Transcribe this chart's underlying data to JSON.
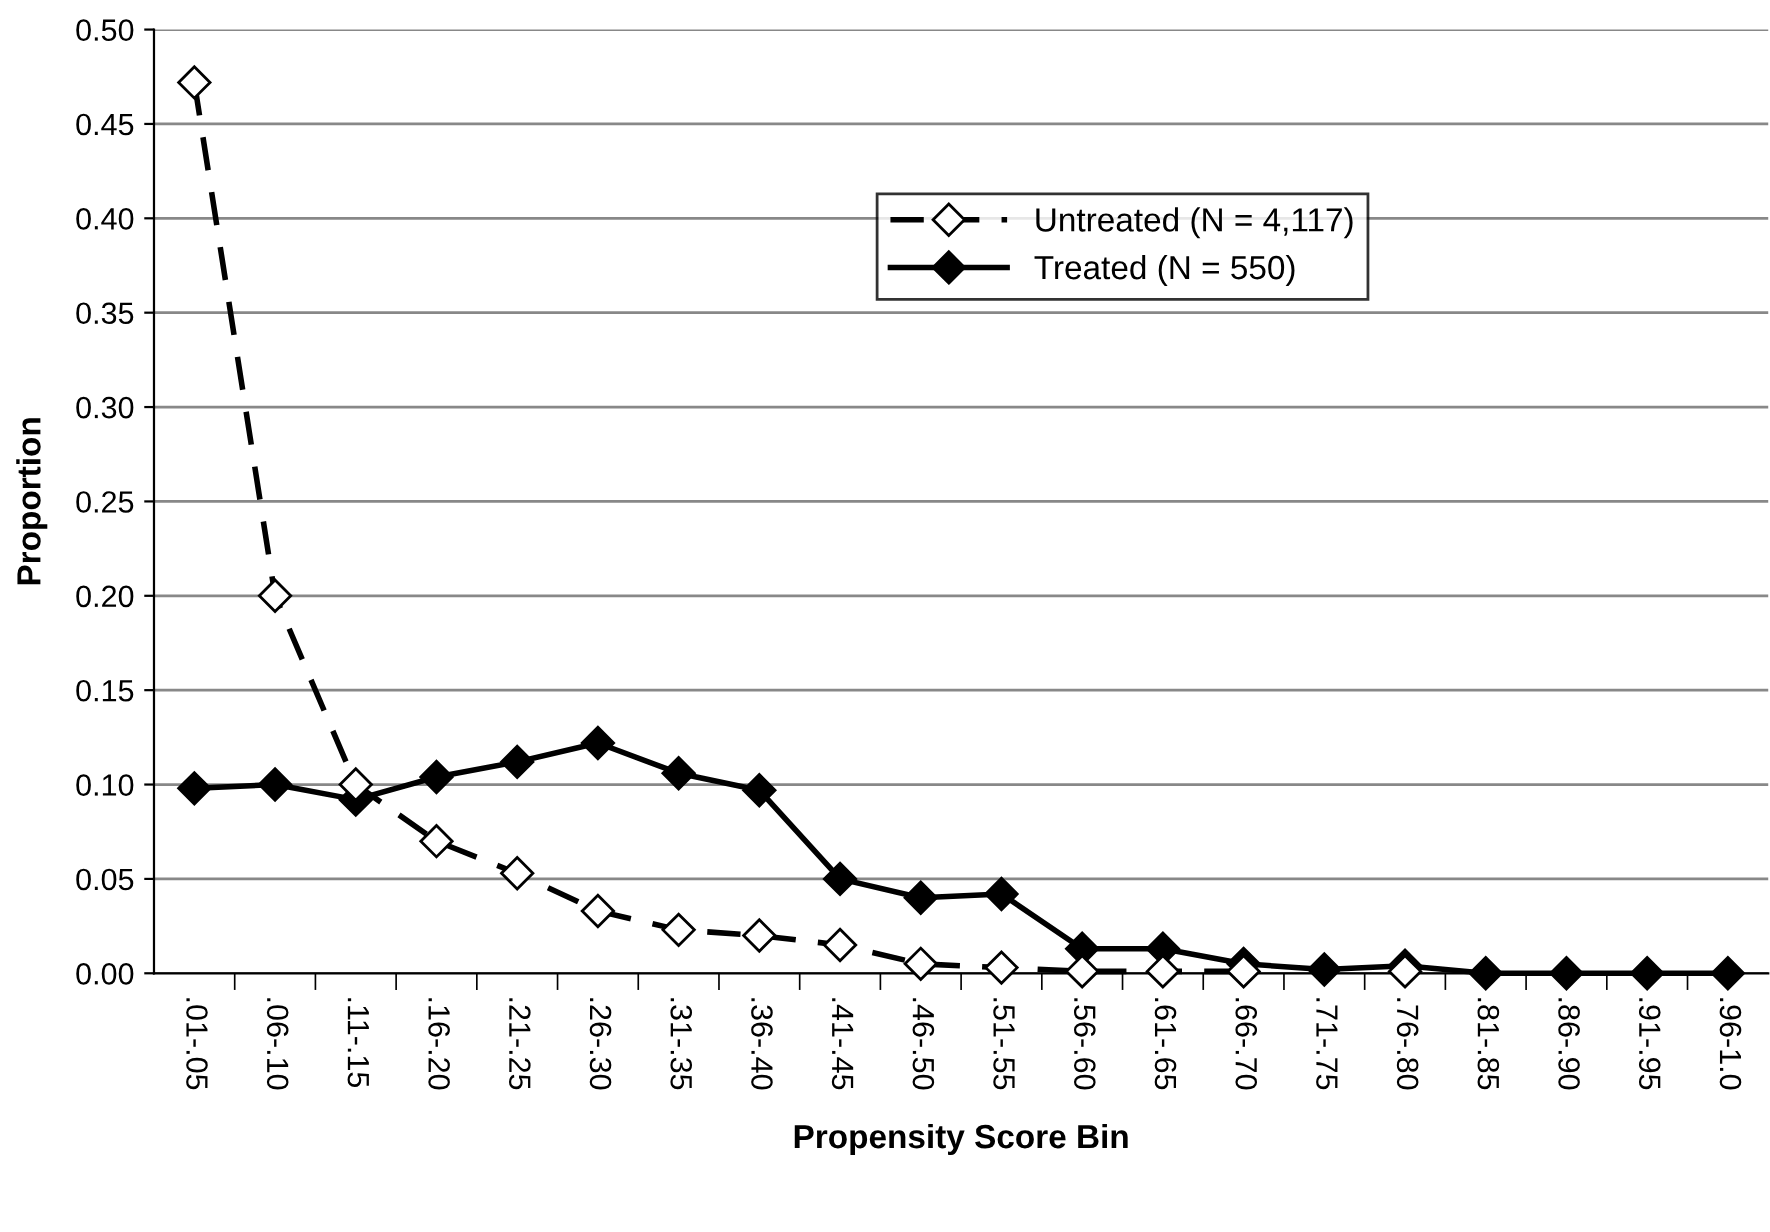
{
  "chart_data": {
    "type": "line",
    "xlabel": "Propensity Score Bin",
    "ylabel": "Proportion",
    "categories": [
      ".01-.05",
      ".06-.10",
      ".11-.15",
      ".16-.20",
      ".21-.25",
      ".26-.30",
      ".31-.35",
      ".36-.40",
      ".41-.45",
      ".46-.50",
      ".51-.55",
      ".56-.60",
      ".61-.65",
      ".66-.70",
      ".71-.75",
      ".76-.80",
      ".81-.85",
      ".86-.90",
      ".91-.95",
      ".96-1.0"
    ],
    "series": [
      {
        "name": "Untreated (N = 4,117)",
        "color": "#000000",
        "line_style": "dashed",
        "marker": "diamond",
        "values": [
          0.472,
          0.2,
          0.1,
          0.07,
          0.053,
          0.033,
          0.023,
          0.02,
          0.015,
          0.005,
          0.003,
          0.001,
          0.001,
          0.001,
          null,
          0.001,
          null,
          null,
          null,
          null
        ]
      },
      {
        "name": "Treated (N = 550)",
        "color": "#000000",
        "line_style": "solid",
        "marker": "diamond",
        "values": [
          0.098,
          0.1,
          0.092,
          0.104,
          0.112,
          0.122,
          0.106,
          0.097,
          0.05,
          0.04,
          0.042,
          0.013,
          0.013,
          0.005,
          0.002,
          0.004,
          0.0,
          0.0,
          0.0,
          0.0
        ]
      }
    ],
    "ylim": [
      0,
      0.5
    ],
    "yticks": [
      {
        "value": 0,
        "label": "0.00"
      },
      {
        "value": 0.05,
        "label": "0.05"
      },
      {
        "value": 0.1,
        "label": "0.10"
      },
      {
        "value": 0.15,
        "label": "0.15"
      },
      {
        "value": 0.2,
        "label": "0.20"
      },
      {
        "value": 0.25,
        "label": "0.25"
      },
      {
        "value": 0.3,
        "label": "0.30"
      },
      {
        "value": 0.35,
        "label": "0.35"
      },
      {
        "value": 0.4,
        "label": "0.40"
      },
      {
        "value": 0.45,
        "label": "0.45"
      },
      {
        "value": 0.5,
        "label": "0.50"
      }
    ],
    "grid": "y",
    "legend": "top right"
  }
}
